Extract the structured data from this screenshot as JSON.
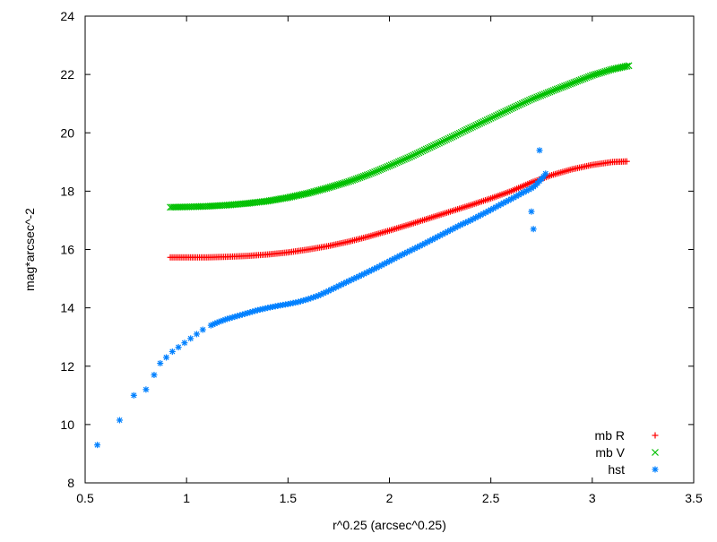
{
  "chart_data": {
    "type": "scatter",
    "title": "",
    "xlabel": "r^0.25 (arcsec^0.25)",
    "ylabel": "mag*arcsec^-2",
    "xlim": [
      0.5,
      3.5
    ],
    "ylim": [
      8,
      24
    ],
    "grid": false,
    "legend_position": "bottom-right",
    "x_ticks": [
      "0.5",
      "1",
      "1.5",
      "2",
      "2.5",
      "3",
      "3.5"
    ],
    "y_ticks": [
      "8",
      "10",
      "12",
      "14",
      "16",
      "18",
      "20",
      "22",
      "24"
    ],
    "series": [
      {
        "name": "mb R",
        "color": "#ff0000",
        "marker": "plus",
        "x": [
          0.92,
          1.0,
          1.1,
          1.2,
          1.3,
          1.4,
          1.5,
          1.6,
          1.7,
          1.8,
          1.9,
          2.0,
          2.1,
          2.2,
          2.3,
          2.4,
          2.5,
          2.6,
          2.7,
          2.8,
          2.9,
          3.0,
          3.1,
          3.17
        ],
        "y": [
          15.73,
          15.73,
          15.73,
          15.75,
          15.78,
          15.83,
          15.9,
          16.0,
          16.12,
          16.27,
          16.45,
          16.65,
          16.86,
          17.08,
          17.3,
          17.52,
          17.75,
          18.0,
          18.3,
          18.55,
          18.75,
          18.9,
          19.0,
          19.02
        ]
      },
      {
        "name": "mb V",
        "color": "#00c000",
        "marker": "cross",
        "x": [
          0.92,
          1.0,
          1.1,
          1.2,
          1.3,
          1.4,
          1.5,
          1.6,
          1.7,
          1.8,
          1.9,
          2.0,
          2.1,
          2.2,
          2.3,
          2.4,
          2.5,
          2.6,
          2.7,
          2.8,
          2.9,
          3.0,
          3.1,
          3.18
        ],
        "y": [
          17.45,
          17.46,
          17.48,
          17.52,
          17.58,
          17.66,
          17.78,
          17.93,
          18.12,
          18.33,
          18.58,
          18.87,
          19.17,
          19.5,
          19.83,
          20.17,
          20.5,
          20.83,
          21.15,
          21.43,
          21.7,
          21.97,
          22.18,
          22.3
        ]
      },
      {
        "name": "hst",
        "color": "#0080ff",
        "marker": "star",
        "x": [
          0.56,
          0.67,
          0.74,
          0.8,
          0.84,
          0.87,
          0.9,
          0.93,
          0.96,
          0.99,
          1.02,
          1.05,
          1.08,
          1.12,
          1.16,
          1.2,
          1.25,
          1.3,
          1.35,
          1.4,
          1.45,
          1.5,
          1.55,
          1.6,
          1.65,
          1.7,
          1.75,
          1.8,
          1.85,
          1.9,
          1.95,
          2.0,
          2.05,
          2.1,
          2.15,
          2.2,
          2.25,
          2.3,
          2.35,
          2.4,
          2.45,
          2.5,
          2.55,
          2.6,
          2.65,
          2.7,
          2.72,
          2.74,
          2.76,
          2.77,
          2.7,
          2.71,
          2.74
        ],
        "y": [
          9.3,
          10.15,
          11.0,
          11.2,
          11.7,
          12.1,
          12.3,
          12.5,
          12.65,
          12.8,
          12.95,
          13.1,
          13.25,
          13.4,
          13.52,
          13.62,
          13.72,
          13.82,
          13.92,
          14.0,
          14.07,
          14.13,
          14.2,
          14.3,
          14.42,
          14.58,
          14.75,
          14.92,
          15.08,
          15.25,
          15.42,
          15.6,
          15.78,
          15.95,
          16.12,
          16.3,
          16.48,
          16.66,
          16.84,
          17.0,
          17.18,
          17.36,
          17.55,
          17.73,
          17.92,
          18.1,
          18.2,
          18.35,
          18.5,
          18.6,
          17.3,
          16.7,
          19.4
        ]
      }
    ]
  }
}
